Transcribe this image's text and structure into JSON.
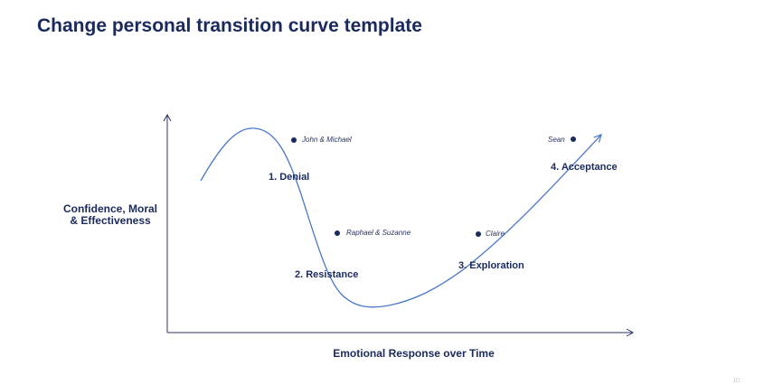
{
  "title": "Change personal transition curve template",
  "axes": {
    "y_label_line1": "Confidence, Moral",
    "y_label_line2": "& Effectiveness",
    "x_label": "Emotional Response over Time"
  },
  "stages": [
    {
      "label": "1. Denial"
    },
    {
      "label": "2. Resistance"
    },
    {
      "label": "3. Exploration"
    },
    {
      "label": "4. Acceptance"
    }
  ],
  "people": [
    {
      "name": "John & Michael"
    },
    {
      "name": "Raphael & Suzanne"
    },
    {
      "name": "Claire"
    },
    {
      "name": "Sean"
    }
  ],
  "colors": {
    "title": "#1b2a5c",
    "curve": "#4a78c8",
    "axis": "#2a3560"
  },
  "page_number": "10"
}
